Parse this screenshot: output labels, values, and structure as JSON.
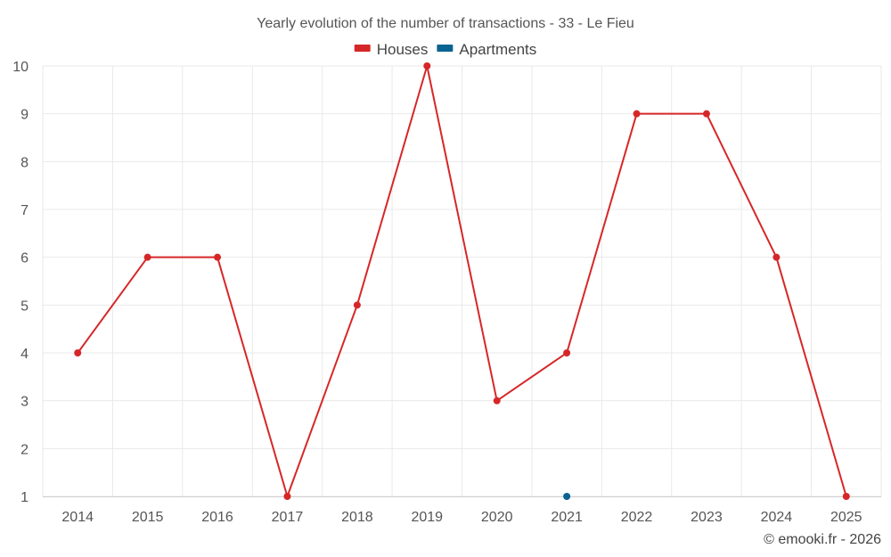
{
  "chart_data": {
    "type": "line",
    "title": "Yearly evolution of the number of transactions - 33 - Le Fieu",
    "xlabel": "",
    "ylabel": "",
    "categories": [
      "2014",
      "2015",
      "2016",
      "2017",
      "2018",
      "2019",
      "2020",
      "2021",
      "2022",
      "2023",
      "2024",
      "2025"
    ],
    "ylim": [
      1,
      10
    ],
    "yticks": [
      "1",
      "2",
      "3",
      "4",
      "5",
      "6",
      "7",
      "8",
      "9",
      "10"
    ],
    "grid": true,
    "legend_position": "top-center",
    "series": [
      {
        "name": "Houses",
        "color": "#d62728",
        "values": [
          4,
          6,
          6,
          1,
          5,
          10,
          3,
          4,
          9,
          9,
          6,
          1
        ]
      },
      {
        "name": "Apartments",
        "color": "#0b6391",
        "values": [
          null,
          null,
          null,
          null,
          null,
          null,
          null,
          1,
          null,
          null,
          null,
          null
        ]
      }
    ]
  },
  "credit": "© emooki.fr - 2026"
}
